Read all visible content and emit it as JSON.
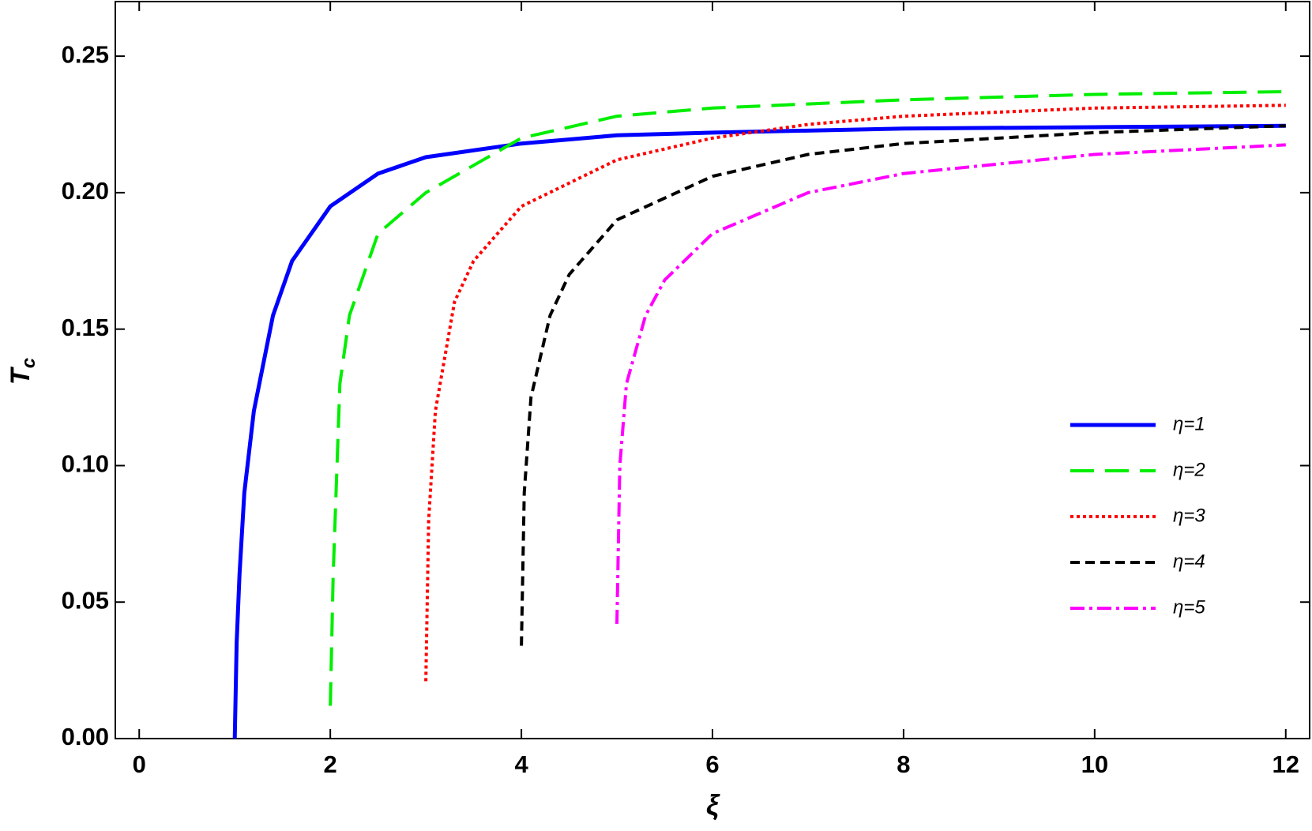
{
  "chart_data": {
    "type": "line",
    "xlabel": "ξ",
    "ylabel": "T",
    "ylabel_subscript": "c",
    "xlim": [
      -0.25,
      12.25
    ],
    "ylim": [
      0,
      0.27
    ],
    "xticks": [
      0,
      2,
      4,
      6,
      8,
      10,
      12
    ],
    "yticks": [
      {
        "value": 0,
        "label": "0.00"
      },
      0.05,
      {
        "value": 0.1,
        "label": "0.10"
      },
      0.15,
      {
        "value": 0.2,
        "label": "0.20"
      },
      0.25
    ],
    "legend": "lower right",
    "series": [
      {
        "name": "η=1",
        "color": "#0000ff",
        "dash": "solid",
        "x": [
          1,
          1.02,
          1.05,
          1.1,
          1.2,
          1.4,
          1.6,
          2,
          2.5,
          3,
          4,
          5,
          6,
          8,
          10,
          12
        ],
        "values": [
          0,
          0.035,
          0.06,
          0.09,
          0.12,
          0.155,
          0.175,
          0.195,
          0.207,
          0.213,
          0.218,
          0.221,
          0.222,
          0.2235,
          0.224,
          0.2245
        ]
      },
      {
        "name": "η=2",
        "color": "#00ee00",
        "dash": "long-dash",
        "x": [
          2,
          2.03,
          2.1,
          2.2,
          2.5,
          3,
          3.5,
          4,
          5,
          6,
          8,
          10,
          12
        ],
        "values": [
          0.012,
          0.06,
          0.13,
          0.155,
          0.185,
          0.2,
          0.21,
          0.22,
          0.228,
          0.231,
          0.234,
          0.236,
          0.237
        ]
      },
      {
        "name": "η=3",
        "color": "#ff0000",
        "dash": "dotted",
        "x": [
          3,
          3.03,
          3.1,
          3.3,
          3.5,
          4,
          5,
          6,
          7,
          8,
          10,
          12
        ],
        "values": [
          0.021,
          0.08,
          0.12,
          0.16,
          0.175,
          0.195,
          0.212,
          0.22,
          0.225,
          0.228,
          0.231,
          0.232
        ]
      },
      {
        "name": "η=4",
        "color": "#000000",
        "dash": "dashed",
        "x": [
          4,
          4.03,
          4.1,
          4.3,
          4.5,
          5,
          6,
          7,
          8,
          10,
          12
        ],
        "values": [
          0.034,
          0.09,
          0.125,
          0.155,
          0.17,
          0.19,
          0.206,
          0.214,
          0.218,
          0.222,
          0.2245
        ]
      },
      {
        "name": "η=5",
        "color": "#ff00ff",
        "dash": "dash-dot",
        "x": [
          5,
          5.03,
          5.1,
          5.3,
          5.5,
          6,
          7,
          8,
          10,
          12
        ],
        "values": [
          0.042,
          0.1,
          0.13,
          0.155,
          0.168,
          0.185,
          0.2,
          0.207,
          0.214,
          0.2175
        ]
      }
    ]
  }
}
